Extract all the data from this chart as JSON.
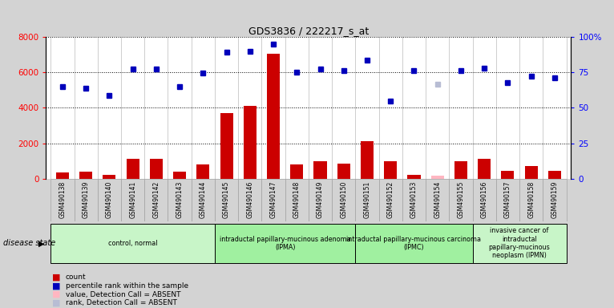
{
  "title": "GDS3836 / 222217_s_at",
  "samples": [
    "GSM490138",
    "GSM490139",
    "GSM490140",
    "GSM490141",
    "GSM490142",
    "GSM490143",
    "GSM490144",
    "GSM490145",
    "GSM490146",
    "GSM490147",
    "GSM490148",
    "GSM490149",
    "GSM490150",
    "GSM490151",
    "GSM490152",
    "GSM490153",
    "GSM490154",
    "GSM490155",
    "GSM490156",
    "GSM490157",
    "GSM490158",
    "GSM490159"
  ],
  "counts": [
    350,
    400,
    230,
    1100,
    1100,
    380,
    820,
    3700,
    4100,
    7050,
    800,
    1000,
    870,
    2100,
    1000,
    230,
    150,
    1000,
    1100,
    430,
    700,
    430
  ],
  "ranks": [
    5200,
    5100,
    4700,
    6200,
    6200,
    5200,
    5950,
    7150,
    7200,
    7600,
    6000,
    6200,
    6100,
    6700,
    4400,
    6100,
    5350,
    6100,
    6250,
    5400,
    5800,
    5700
  ],
  "absent_count_idx": [
    16
  ],
  "absent_rank_idx": [
    16
  ],
  "absent_count_color": "#ffb6c1",
  "absent_rank_color": "#b8bdd4",
  "bar_color": "#cc0000",
  "dot_color": "#0000bb",
  "ylim_left": [
    0,
    8000
  ],
  "ylim_right": [
    0,
    100
  ],
  "yticks_left": [
    0,
    2000,
    4000,
    6000,
    8000
  ],
  "ytick_labels_left": [
    "0",
    "2000",
    "4000",
    "6000",
    "8000"
  ],
  "yticks_right": [
    0,
    25,
    50,
    75,
    100
  ],
  "ytick_labels_right": [
    "0",
    "25",
    "50",
    "75",
    "100%"
  ],
  "groups": [
    {
      "label": "control, normal",
      "start": 0,
      "end": 7,
      "color": "#c8f5c8"
    },
    {
      "label": "intraductal papillary-mucinous adenoma\n(IPMA)",
      "start": 7,
      "end": 13,
      "color": "#a0f0a0"
    },
    {
      "label": "intraductal papillary-mucinous carcinoma\n(IPMC)",
      "start": 13,
      "end": 18,
      "color": "#a0f0a0"
    },
    {
      "label": "invasive cancer of\nintraductal\npapillary-mucinous\nneoplasm (IPMN)",
      "start": 18,
      "end": 22,
      "color": "#c8f5c8"
    }
  ],
  "disease_state_label": "disease state",
  "legend_items": [
    {
      "label": "count",
      "color": "#cc0000"
    },
    {
      "label": "percentile rank within the sample",
      "color": "#0000bb"
    },
    {
      "label": "value, Detection Call = ABSENT",
      "color": "#ffb6c1"
    },
    {
      "label": "rank, Detection Call = ABSENT",
      "color": "#b8bdd4"
    }
  ],
  "bg_color": "#d3d3d3",
  "plot_bg_color": "#ffffff",
  "tick_bg_color": "#d0d0d0"
}
